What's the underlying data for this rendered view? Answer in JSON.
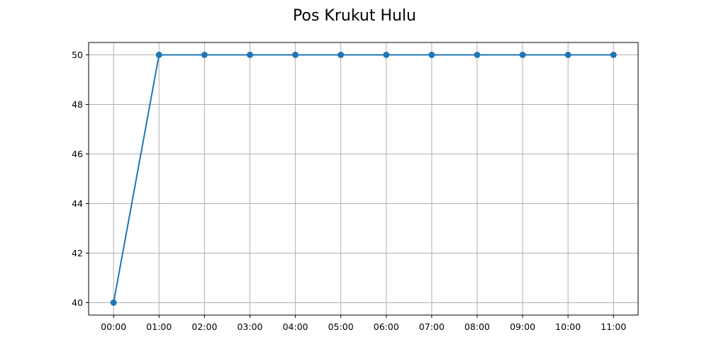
{
  "chart_data": {
    "type": "line",
    "title": "Pos Krukut Hulu",
    "xlabel": "",
    "ylabel": "",
    "categories": [
      "00:00",
      "01:00",
      "02:00",
      "03:00",
      "04:00",
      "05:00",
      "06:00",
      "07:00",
      "08:00",
      "09:00",
      "10:00",
      "11:00"
    ],
    "series": [
      {
        "values": [
          40,
          50,
          50,
          50,
          50,
          50,
          50,
          50,
          50,
          50,
          50,
          50
        ]
      }
    ],
    "ylim": [
      39.5,
      50.5
    ],
    "yticks": [
      40,
      42,
      44,
      46,
      48,
      50
    ],
    "grid": true,
    "legend": "none",
    "color": "#1f77b4"
  }
}
